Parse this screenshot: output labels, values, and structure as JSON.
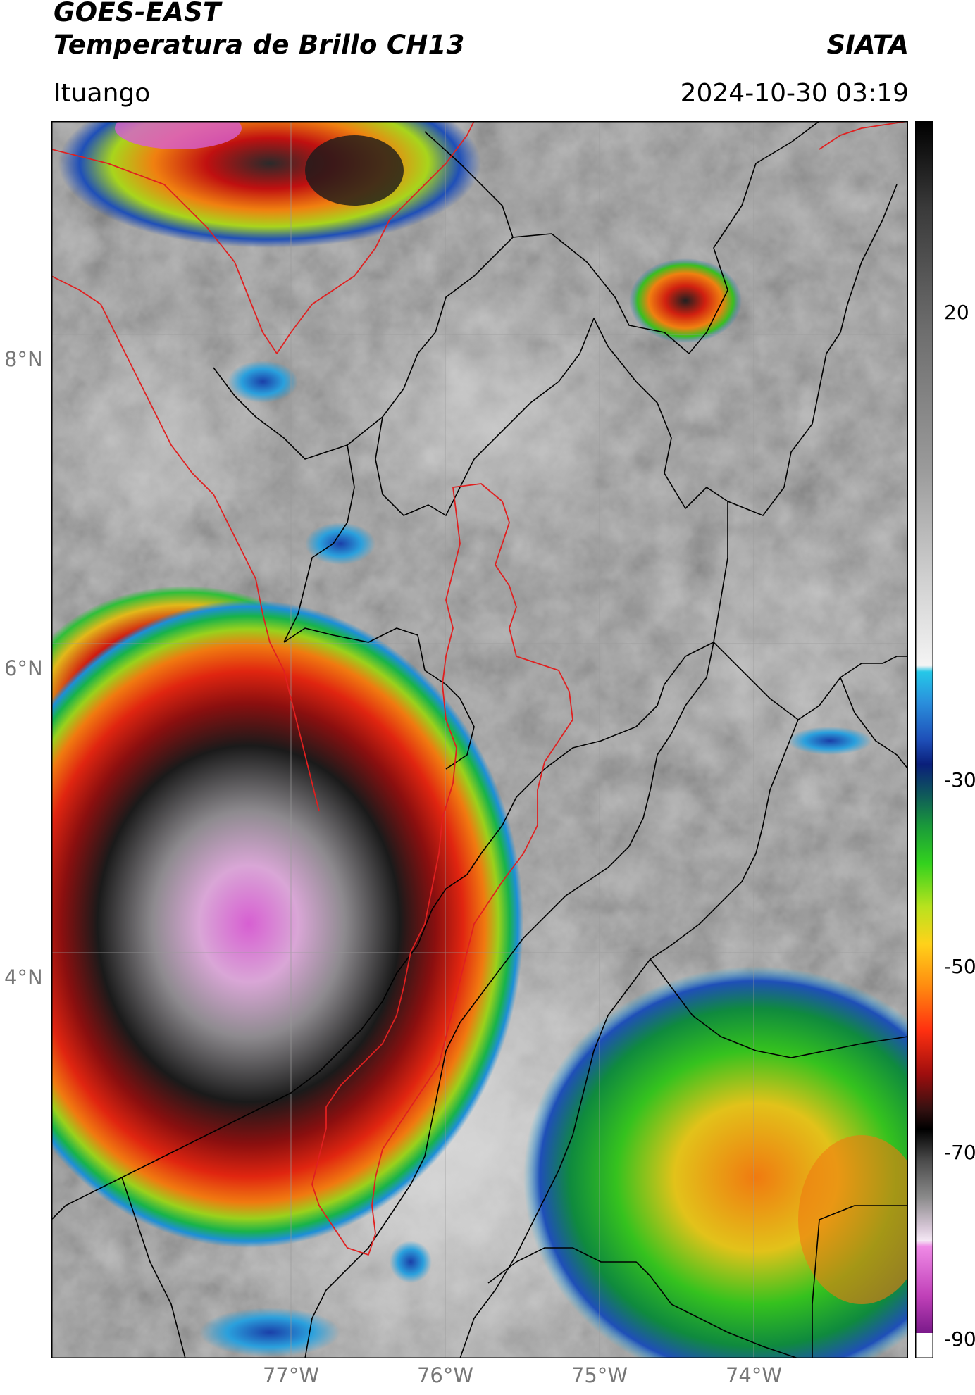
{
  "header": {
    "title_line1": "GOES-EAST",
    "title_line2": "Temperatura de Brillo CH13",
    "organization": "SIATA",
    "region": "Ituango",
    "timestamp": "2024-10-30 03:19"
  },
  "map": {
    "lat_labels": [
      "8°N",
      "6°N",
      "4°N"
    ],
    "lon_labels": [
      "77°W",
      "76°W",
      "75°W",
      "74°W"
    ],
    "border_color": "#000000",
    "region_outline_color": "#e02020"
  },
  "colorbar": {
    "tick_labels": [
      "20",
      "-30",
      "-50",
      "-70",
      "-90"
    ],
    "range": [
      -90,
      40
    ],
    "palette_note": [
      "grey",
      "cyan",
      "blue",
      "green",
      "yellow",
      "orange",
      "red",
      "black",
      "white",
      "magenta"
    ]
  }
}
